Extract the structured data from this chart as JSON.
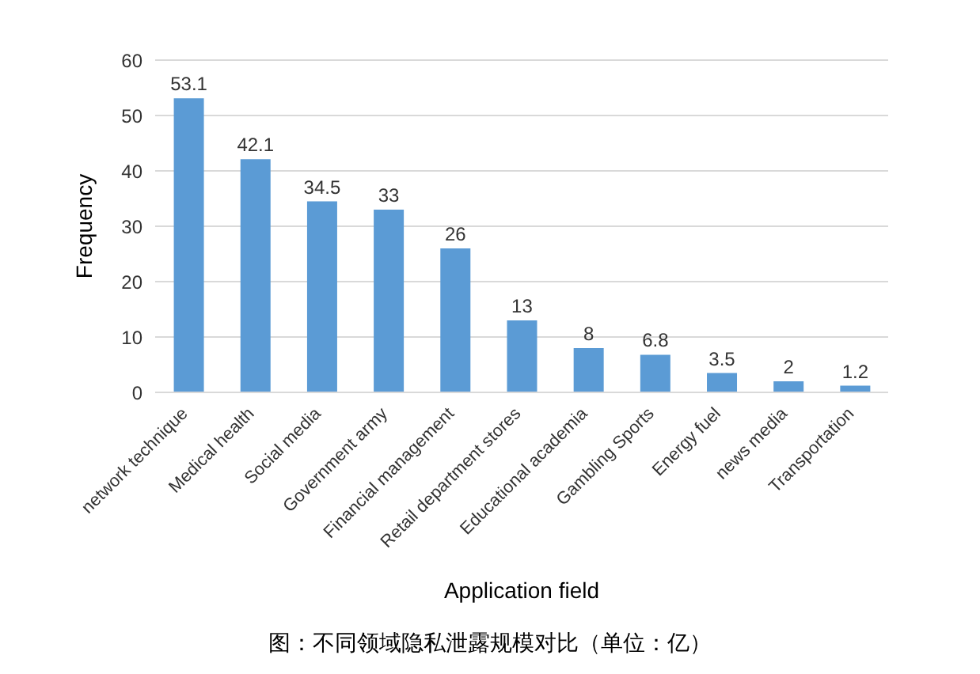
{
  "chart_data": {
    "type": "bar",
    "xlabel": "Application field",
    "ylabel": "Frequency",
    "categories": [
      "network technique",
      "Medical health",
      "Social media",
      "Government army",
      "Financial management",
      "Retail department stores",
      "Educational academia",
      "Gambling Sports",
      "Energy fuel",
      "news media",
      "Transportation"
    ],
    "values": [
      53.1,
      42.1,
      34.5,
      33,
      26,
      13,
      8,
      6.8,
      3.5,
      2,
      1.2
    ],
    "color": "#5b9bd5",
    "ylim": [
      0,
      60
    ],
    "yticks": [
      0,
      10,
      20,
      30,
      40,
      50,
      60
    ],
    "grid": "y",
    "data_labels": true,
    "annotations": [
      "图：不同领域隐私泄露规模对比（单位：亿）"
    ]
  }
}
